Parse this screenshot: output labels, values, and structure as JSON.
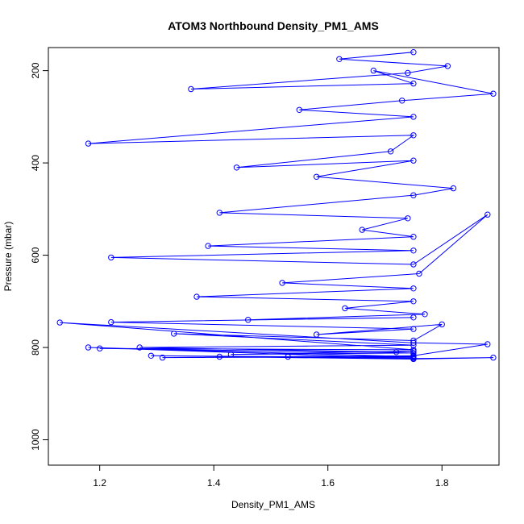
{
  "chart_data": {
    "type": "scatter",
    "title": "ATOM3 Northbound Density_PM1_AMS",
    "xlabel": "Density_PM1_AMS",
    "ylabel": "Pressure (mbar)",
    "xlim": [
      1.11,
      1.9
    ],
    "ylim": [
      1055,
      150
    ],
    "y_reversed": true,
    "x_ticks": [
      1.2,
      1.4,
      1.6,
      1.8
    ],
    "x_tick_labels": [
      "1.2",
      "1.4",
      "1.6",
      "1.8"
    ],
    "y_ticks": [
      200,
      400,
      600,
      800,
      1000
    ],
    "y_tick_labels": [
      "200",
      "400",
      "600",
      "800",
      "1000"
    ],
    "grid": false,
    "legend": "none",
    "series": [
      {
        "color": "#0000ff",
        "marker": "open-circle",
        "connected": true,
        "x": [
          1.75,
          1.62,
          1.81,
          1.74,
          1.36,
          1.75,
          1.68,
          1.89,
          1.73,
          1.55,
          1.75,
          1.18,
          1.75,
          1.71,
          1.44,
          1.75,
          1.58,
          1.82,
          1.75,
          1.41,
          1.74,
          1.66,
          1.75,
          1.39,
          1.75,
          1.22,
          1.75,
          1.88,
          1.76,
          1.52,
          1.75,
          1.37,
          1.75,
          1.63,
          1.77,
          1.46,
          1.75,
          1.22,
          1.75,
          1.58,
          1.8,
          1.75,
          1.33,
          1.75,
          1.27,
          1.72,
          1.75,
          1.43,
          1.75,
          1.2,
          1.75,
          1.13,
          1.75,
          1.88,
          1.75,
          1.31,
          1.75,
          1.18,
          1.75,
          1.29,
          1.75,
          1.53,
          1.75,
          1.89,
          1.75,
          1.41
        ],
        "y": [
          160,
          175,
          190,
          205,
          240,
          228,
          200,
          250,
          265,
          285,
          300,
          358,
          340,
          375,
          410,
          395,
          430,
          455,
          470,
          508,
          520,
          545,
          560,
          580,
          590,
          605,
          620,
          512,
          640,
          660,
          672,
          690,
          700,
          715,
          728,
          740,
          735,
          745,
          760,
          772,
          750,
          785,
          770,
          795,
          800,
          810,
          808,
          815,
          812,
          802,
          805,
          746,
          790,
          793,
          818,
          822,
          820,
          800,
          824,
          818,
          822,
          820,
          824,
          822,
          825,
          820
        ]
      }
    ]
  }
}
